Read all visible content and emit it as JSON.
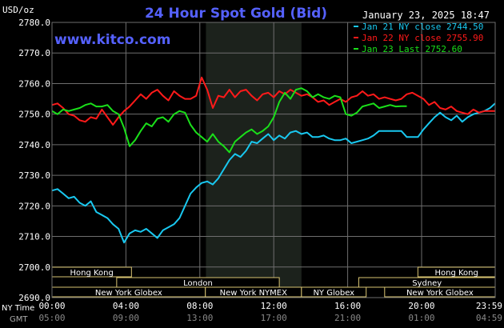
{
  "chart_data": {
    "type": "line",
    "title": "24 Hour Spot Gold (Bid)",
    "ylabel": "USD/oz",
    "watermark": "www.kitco.com",
    "timestamp": "January 23, 2025 18:47",
    "ylim": [
      2690,
      2780
    ],
    "y_ticks": [
      "2780.0",
      "2770.0",
      "2760.0",
      "2750.0",
      "2740.0",
      "2730.0",
      "2720.0",
      "2710.0",
      "2700.0",
      "2690.0"
    ],
    "x_ticks": [
      "00:00",
      "04:00",
      "08:00",
      "12:00",
      "16:00",
      "20:00",
      "23:59"
    ],
    "x_ticks_gmt": [
      "05:00",
      "09:00",
      "13:00",
      "17:00",
      "21:00",
      "01:00",
      "04:59"
    ],
    "x_tick_hours": [
      0,
      4,
      8,
      12,
      16,
      20,
      23.983
    ],
    "time_label_ny": "NY Time",
    "time_label_gmt": "GMT",
    "shaded_hours": [
      8.33,
      13.5
    ],
    "colors": {
      "background": "#000000",
      "grid": "#6e6e6e",
      "text": "#ffffff",
      "title": "#5561ff",
      "watermark": "#5561ff",
      "shade": "#1c221c",
      "band_border": "#d8c472"
    },
    "legend": [
      {
        "label": "Jan 21 NY close 2744.50",
        "color": "#19c8f0"
      },
      {
        "label": "Jan 22 NY close 2755.90",
        "color": "#ff1a1a"
      },
      {
        "label": "Jan 23 Last 2752.60",
        "color": "#1adf1a"
      }
    ],
    "series": [
      {
        "name": "Jan 21 NY close 2744.50",
        "color": "#19c8f0",
        "x": [
          0,
          0.3,
          0.6,
          0.9,
          1.2,
          1.5,
          1.8,
          2.1,
          2.4,
          2.7,
          3.0,
          3.3,
          3.6,
          3.9,
          4.2,
          4.5,
          4.8,
          5.1,
          5.4,
          5.7,
          6.0,
          6.3,
          6.6,
          6.9,
          7.2,
          7.5,
          7.8,
          8.1,
          8.4,
          8.7,
          9.0,
          9.3,
          9.6,
          9.9,
          10.2,
          10.5,
          10.8,
          11.1,
          11.4,
          11.7,
          12.0,
          12.3,
          12.6,
          12.9,
          13.2,
          13.5,
          13.8,
          14.1,
          14.4,
          14.7,
          15.0,
          15.3,
          15.6,
          15.9,
          16.2,
          16.5,
          16.8,
          17.1,
          17.4,
          17.7,
          18.0,
          18.3,
          18.6,
          18.9,
          19.2,
          19.5,
          19.8,
          20.1,
          20.4,
          20.7,
          21.0,
          21.3,
          21.6,
          21.9,
          22.2,
          22.5,
          22.8,
          23.1,
          23.4,
          23.7,
          23.98
        ],
        "y": [
          2725.0,
          2725.5,
          2724.0,
          2722.5,
          2723.0,
          2721.0,
          2720.0,
          2721.5,
          2718.0,
          2717.0,
          2716.0,
          2714.0,
          2712.5,
          2708.0,
          2711.0,
          2712.0,
          2711.5,
          2712.5,
          2711.0,
          2709.5,
          2712.0,
          2713.0,
          2714.0,
          2716.0,
          2720.0,
          2724.0,
          2726.0,
          2727.5,
          2728.0,
          2727.0,
          2729.0,
          2732.0,
          2735.0,
          2737.0,
          2736.0,
          2738.0,
          2741.0,
          2740.5,
          2742.0,
          2743.5,
          2741.5,
          2743.0,
          2742.0,
          2744.0,
          2744.5,
          2743.5,
          2744.0,
          2742.5,
          2742.5,
          2743.0,
          2742.0,
          2741.5,
          2741.5,
          2742.0,
          2740.5,
          2741.0,
          2741.5,
          2742.0,
          2743.0,
          2744.5,
          2744.5,
          2744.5,
          2744.5,
          2744.5,
          2742.5,
          2742.5,
          2742.5,
          2745.0,
          2747.0,
          2749.0,
          2750.5,
          2749.0,
          2748.0,
          2749.5,
          2747.5,
          2749.0,
          2750.0,
          2750.5,
          2751.0,
          2752.0,
          2753.5
        ]
      },
      {
        "name": "Jan 22 NY close 2755.90",
        "color": "#ff1a1a",
        "x": [
          0,
          0.3,
          0.6,
          0.9,
          1.2,
          1.5,
          1.8,
          2.1,
          2.4,
          2.7,
          3.0,
          3.3,
          3.6,
          3.9,
          4.2,
          4.5,
          4.8,
          5.1,
          5.4,
          5.7,
          6.0,
          6.3,
          6.6,
          6.9,
          7.2,
          7.5,
          7.8,
          8.1,
          8.4,
          8.7,
          9.0,
          9.3,
          9.6,
          9.9,
          10.2,
          10.5,
          10.8,
          11.1,
          11.4,
          11.7,
          12.0,
          12.3,
          12.6,
          12.9,
          13.2,
          13.5,
          13.8,
          14.1,
          14.4,
          14.7,
          15.0,
          15.3,
          15.6,
          15.9,
          16.2,
          16.5,
          16.8,
          17.1,
          17.4,
          17.7,
          18.0,
          18.3,
          18.6,
          18.9,
          19.2,
          19.5,
          19.8,
          20.1,
          20.4,
          20.7,
          21.0,
          21.3,
          21.6,
          21.9,
          22.2,
          22.5,
          22.8,
          23.1,
          23.4,
          23.7,
          23.98
        ],
        "y": [
          2753.0,
          2753.5,
          2752.0,
          2750.0,
          2749.5,
          2748.0,
          2747.5,
          2749.0,
          2748.5,
          2751.5,
          2749.0,
          2746.5,
          2749.0,
          2751.0,
          2752.5,
          2754.5,
          2756.5,
          2755.0,
          2757.0,
          2758.0,
          2756.0,
          2754.5,
          2757.5,
          2756.0,
          2755.0,
          2755.0,
          2756.0,
          2762.0,
          2758.0,
          2752.0,
          2756.0,
          2755.5,
          2758.0,
          2755.5,
          2757.5,
          2758.0,
          2756.0,
          2754.5,
          2756.5,
          2757.0,
          2755.5,
          2757.5,
          2756.5,
          2758.0,
          2757.0,
          2756.0,
          2756.5,
          2755.5,
          2754.0,
          2754.5,
          2753.0,
          2754.0,
          2755.0,
          2754.0,
          2755.5,
          2756.0,
          2757.5,
          2756.0,
          2756.5,
          2755.0,
          2755.5,
          2755.0,
          2754.5,
          2755.0,
          2756.5,
          2757.0,
          2756.0,
          2755.0,
          2753.0,
          2754.0,
          2752.0,
          2751.5,
          2752.5,
          2751.0,
          2750.5,
          2750.0,
          2751.5,
          2750.5,
          2751.0,
          2751.0,
          2751.0
        ]
      },
      {
        "name": "Jan 23 Last 2752.60",
        "color": "#1adf1a",
        "x": [
          0,
          0.3,
          0.6,
          0.9,
          1.2,
          1.5,
          1.8,
          2.1,
          2.4,
          2.7,
          3.0,
          3.3,
          3.6,
          3.9,
          4.2,
          4.5,
          4.8,
          5.1,
          5.4,
          5.7,
          6.0,
          6.3,
          6.6,
          6.9,
          7.2,
          7.5,
          7.8,
          8.1,
          8.4,
          8.7,
          9.0,
          9.3,
          9.6,
          9.9,
          10.2,
          10.5,
          10.8,
          11.1,
          11.4,
          11.7,
          12.0,
          12.3,
          12.6,
          12.9,
          13.2,
          13.5,
          13.8,
          14.1,
          14.4,
          14.7,
          15.0,
          15.3,
          15.6,
          15.9,
          16.2,
          16.5,
          16.8,
          17.1,
          17.4,
          17.7,
          18.0,
          18.3,
          18.6,
          18.9,
          19.2
        ],
        "y": [
          2751.0,
          2750.0,
          2751.5,
          2751.0,
          2751.5,
          2752.0,
          2753.0,
          2753.5,
          2752.5,
          2752.5,
          2753.0,
          2751.0,
          2750.0,
          2745.5,
          2739.5,
          2741.5,
          2744.5,
          2747.0,
          2746.0,
          2748.5,
          2749.0,
          2747.5,
          2750.0,
          2751.0,
          2750.5,
          2746.5,
          2744.0,
          2742.5,
          2741.0,
          2743.5,
          2741.0,
          2739.5,
          2737.5,
          2741.0,
          2742.5,
          2744.0,
          2745.0,
          2743.5,
          2744.5,
          2746.0,
          2749.0,
          2754.0,
          2757.0,
          2755.0,
          2758.0,
          2758.5,
          2757.5,
          2755.5,
          2756.5,
          2755.5,
          2755.0,
          2756.0,
          2755.5,
          2750.0,
          2749.5,
          2750.5,
          2752.5,
          2753.0,
          2753.5,
          2752.0,
          2752.5,
          2753.0,
          2752.5,
          2752.6,
          2752.6
        ]
      }
    ],
    "market_bands": [
      {
        "label": "Hong Kong",
        "row": 0,
        "start": -1,
        "end": 4.3
      },
      {
        "label": "Hong Kong",
        "row": 0,
        "start": 19.8,
        "end": 25
      },
      {
        "label": "London",
        "row": 1,
        "start": 3.5,
        "end": 12.3
      },
      {
        "label": "Sydney",
        "row": 1,
        "start": 16.6,
        "end": 25
      },
      {
        "label": "New York Globex",
        "row": 2,
        "start": -1,
        "end": 8.3
      },
      {
        "label": "New York NYMEX",
        "row": 2,
        "start": 8.3,
        "end": 13.5
      },
      {
        "label": "NY Globex",
        "row": 2,
        "start": 13.5,
        "end": 17.0
      },
      {
        "label": "New York Globex",
        "row": 2,
        "start": 18.0,
        "end": 25
      }
    ]
  }
}
